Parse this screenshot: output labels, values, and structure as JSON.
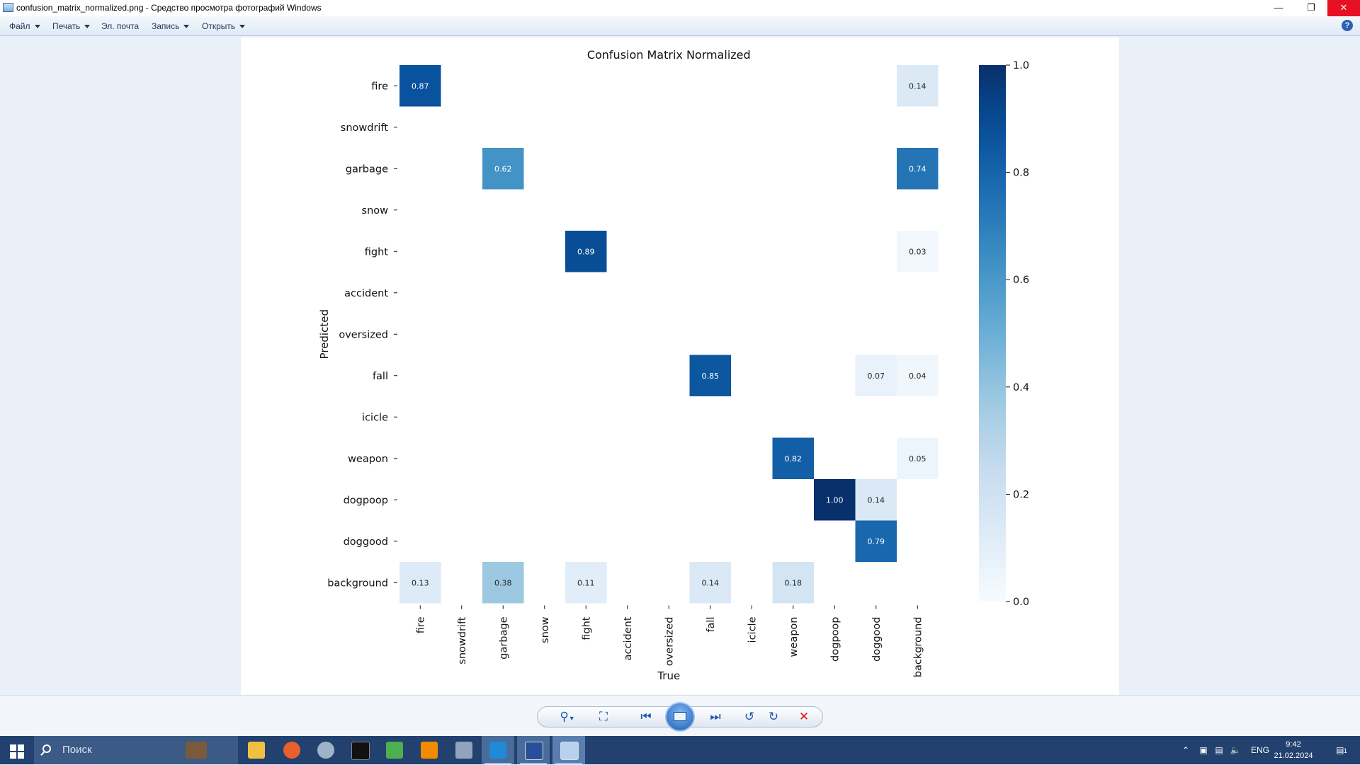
{
  "window": {
    "title": "confusion_matrix_normalized.png - Средство просмотра фотографий Windows",
    "min_icon": "minimize-icon",
    "restore_icon": "restore-icon",
    "close_icon": "close-icon"
  },
  "menu": {
    "items": [
      {
        "label": "Файл",
        "dropdown": true
      },
      {
        "label": "Печать",
        "dropdown": true
      },
      {
        "label": "Эл. почта",
        "dropdown": false
      },
      {
        "label": "Запись",
        "dropdown": true
      },
      {
        "label": "Открыть",
        "dropdown": true
      }
    ],
    "help_label": "?"
  },
  "chart_data": {
    "type": "heatmap",
    "title": "Confusion Matrix Normalized",
    "xlabel": "True",
    "ylabel": "Predicted",
    "x_categories": [
      "fire",
      "snowdrift",
      "garbage",
      "snow",
      "fight",
      "accident",
      "oversized",
      "fall",
      "icicle",
      "weapon",
      "dogpoop",
      "doggood",
      "background"
    ],
    "y_categories": [
      "fire",
      "snowdrift",
      "garbage",
      "snow",
      "fight",
      "accident",
      "oversized",
      "fall",
      "icicle",
      "weapon",
      "dogpoop",
      "doggood",
      "background"
    ],
    "cells": [
      {
        "row": "fire",
        "col": "fire",
        "value": 0.87,
        "label": "0.87"
      },
      {
        "row": "fire",
        "col": "background",
        "value": 0.14,
        "label": "0.14"
      },
      {
        "row": "garbage",
        "col": "garbage",
        "value": 0.62,
        "label": "0.62"
      },
      {
        "row": "garbage",
        "col": "background",
        "value": 0.74,
        "label": "0.74"
      },
      {
        "row": "fight",
        "col": "fight",
        "value": 0.89,
        "label": "0.89"
      },
      {
        "row": "fight",
        "col": "background",
        "value": 0.03,
        "label": "0.03"
      },
      {
        "row": "fall",
        "col": "fall",
        "value": 0.85,
        "label": "0.85"
      },
      {
        "row": "fall",
        "col": "doggood",
        "value": 0.07,
        "label": "0.07"
      },
      {
        "row": "fall",
        "col": "background",
        "value": 0.04,
        "label": "0.04"
      },
      {
        "row": "weapon",
        "col": "weapon",
        "value": 0.82,
        "label": "0.82"
      },
      {
        "row": "weapon",
        "col": "background",
        "value": 0.05,
        "label": "0.05"
      },
      {
        "row": "dogpoop",
        "col": "dogpoop",
        "value": 1.0,
        "label": "1.00"
      },
      {
        "row": "dogpoop",
        "col": "doggood",
        "value": 0.14,
        "label": "0.14"
      },
      {
        "row": "doggood",
        "col": "doggood",
        "value": 0.79,
        "label": "0.79"
      },
      {
        "row": "background",
        "col": "fire",
        "value": 0.13,
        "label": "0.13"
      },
      {
        "row": "background",
        "col": "garbage",
        "value": 0.38,
        "label": "0.38"
      },
      {
        "row": "background",
        "col": "fight",
        "value": 0.11,
        "label": "0.11"
      },
      {
        "row": "background",
        "col": "fall",
        "value": 0.14,
        "label": "0.14"
      },
      {
        "row": "background",
        "col": "weapon",
        "value": 0.18,
        "label": "0.18"
      }
    ],
    "colorbar": {
      "range": [
        0.0,
        1.0
      ],
      "ticks": [
        0.0,
        0.2,
        0.4,
        0.6,
        0.8,
        1.0
      ],
      "tick_labels": [
        "0.0",
        "0.2",
        "0.4",
        "0.6",
        "0.8",
        "1.0"
      ],
      "colormap": "Blues",
      "low_color": "#f7fbff",
      "high_color": "#08306b"
    },
    "grid": false
  },
  "toolbar": {
    "zoom_icon": "zoom-icon",
    "fit_icon": "actual-size-icon",
    "prev_icon": "previous-icon",
    "slideshow_icon": "slideshow-icon",
    "next_icon": "next-icon",
    "rotate_left_icon": "rotate-ccw-icon",
    "rotate_right_icon": "rotate-cw-icon",
    "delete_icon": "delete-icon"
  },
  "taskbar": {
    "search_placeholder": "Поиск",
    "language": "ENG",
    "time": "9:42",
    "date": "21.02.2024",
    "notification_count": "1"
  }
}
